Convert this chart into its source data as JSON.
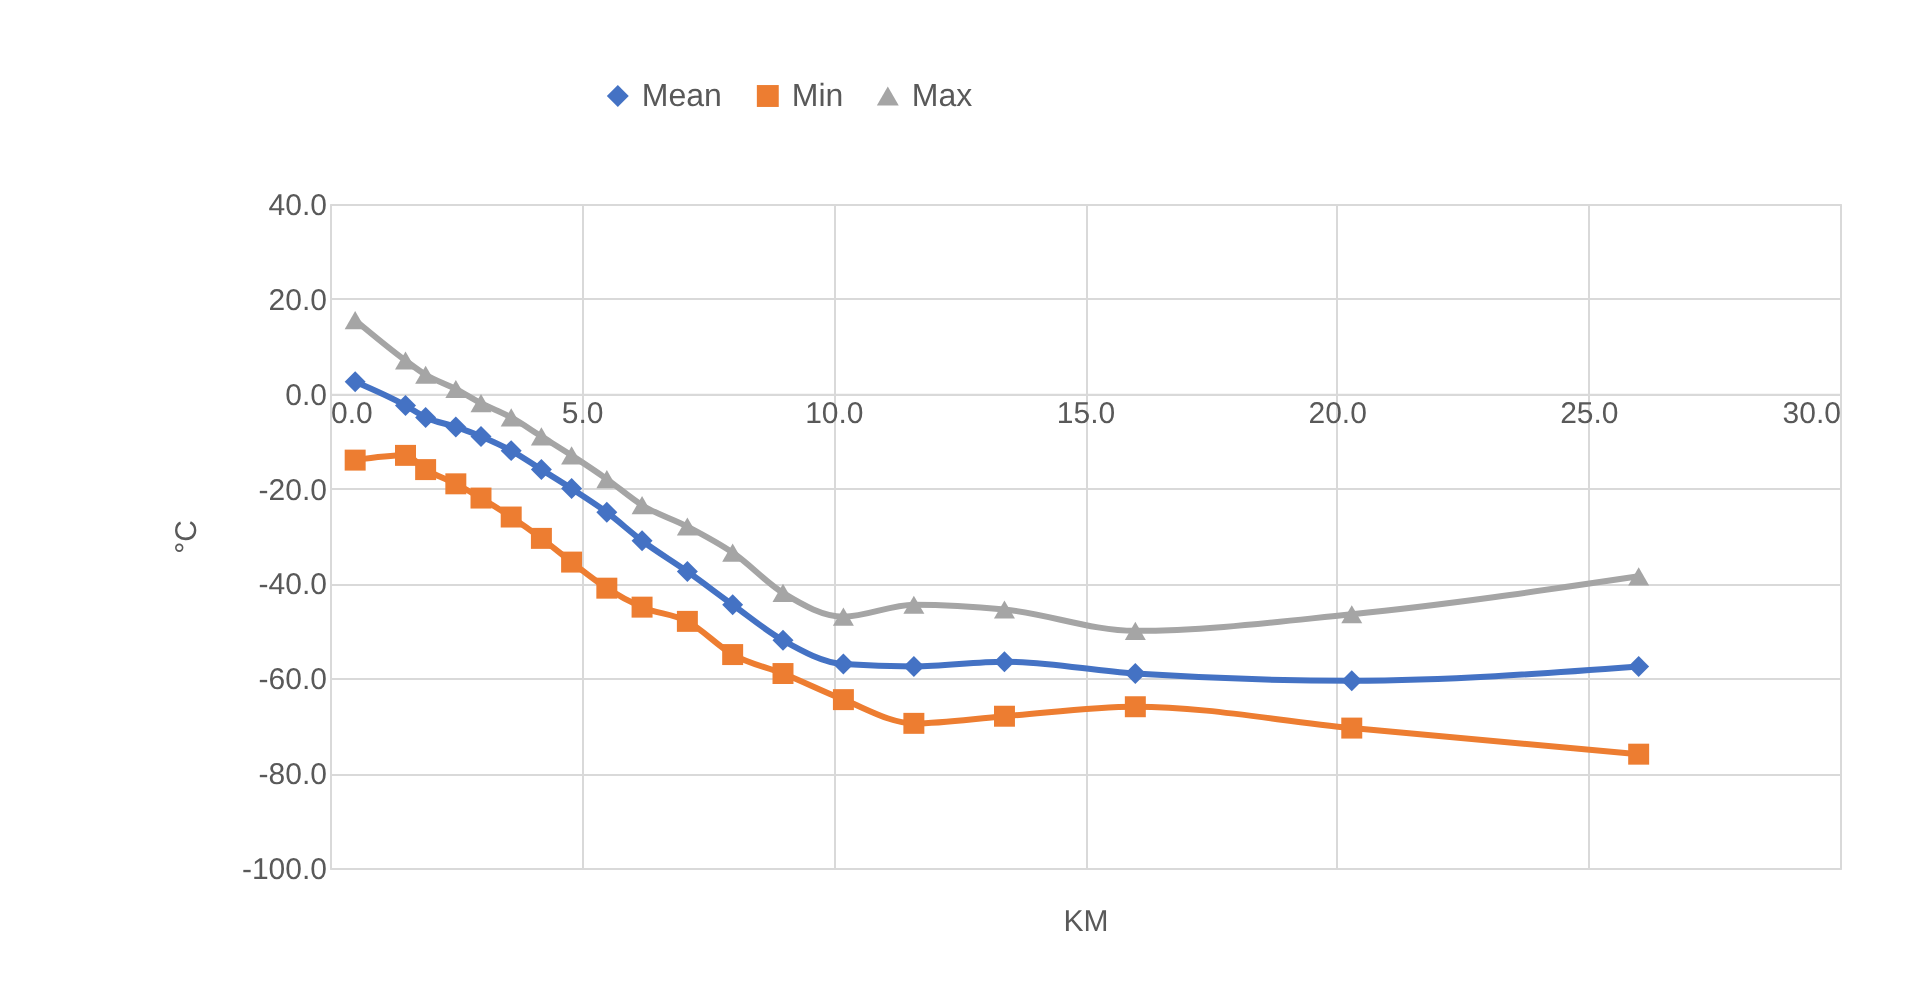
{
  "chart_data": {
    "type": "line",
    "xlabel": "KM",
    "ylabel": "°C",
    "x": [
      0.5,
      1.5,
      1.9,
      2.5,
      3.0,
      3.6,
      4.2,
      4.8,
      5.5,
      6.2,
      7.1,
      8.0,
      9.0,
      10.2,
      11.6,
      13.4,
      16.0,
      20.3,
      26.0
    ],
    "series": [
      {
        "name": "Mean",
        "color": "#4472c4",
        "marker": "diamond",
        "values": [
          2.5,
          -2.5,
          -5,
          -7,
          -9,
          -12,
          -16,
          -20,
          -25,
          -31,
          -37.5,
          -44.5,
          -52,
          -57,
          -57.5,
          -56.5,
          -59,
          -60.5,
          -57.5
        ]
      },
      {
        "name": "Min",
        "color": "#ed7d31",
        "marker": "square",
        "values": [
          -14,
          -13,
          -16,
          -19,
          -22,
          -26,
          -30.5,
          -35.5,
          -41,
          -45,
          -48,
          -55,
          -59,
          -64.5,
          -69.5,
          -68,
          -66,
          -70.5,
          -76
        ]
      },
      {
        "name": "Max",
        "color": "#a5a5a5",
        "marker": "triangle",
        "values": [
          15.5,
          7,
          4,
          1,
          -2,
          -5,
          -9,
          -13,
          -18,
          -23.5,
          -28,
          -33.5,
          -42,
          -47,
          -44.5,
          -45.5,
          -50,
          -46.5,
          -38.5
        ]
      }
    ],
    "xlim": [
      0,
      30
    ],
    "xticks": [
      {
        "value": 0,
        "label": "0.0"
      },
      {
        "value": 5,
        "label": "5.0"
      },
      {
        "value": 10,
        "label": "10.0"
      },
      {
        "value": 15,
        "label": "15.0"
      },
      {
        "value": 20,
        "label": "20.0"
      },
      {
        "value": 25,
        "label": "25.0"
      },
      {
        "value": 30,
        "label": "30.0"
      }
    ],
    "ylim": [
      -100,
      40
    ],
    "yticks": [
      {
        "value": -100,
        "label": "-100.0"
      },
      {
        "value": -80,
        "label": "-80.0"
      },
      {
        "value": -60,
        "label": "-60.0"
      },
      {
        "value": -40,
        "label": "-40.0"
      },
      {
        "value": -20,
        "label": "-20.0"
      },
      {
        "value": 0,
        "label": "0.0"
      },
      {
        "value": 20,
        "label": "20.0"
      },
      {
        "value": 40,
        "label": "40.0"
      }
    ],
    "grid": true,
    "legend": "top",
    "line_style": "solid"
  }
}
